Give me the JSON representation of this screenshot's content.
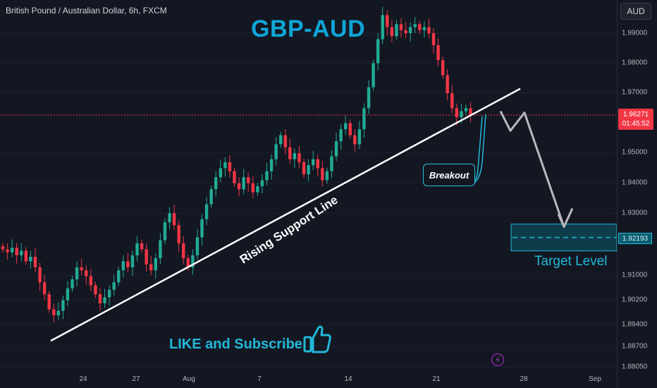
{
  "header": {
    "symbol_title": "British Pound / Australian Dollar, 6h, FXCM",
    "currency_button": "AUD"
  },
  "annotations": {
    "main_title": "GBP-AUD",
    "support_line_label": "Rising Support Line",
    "breakout_label": "Breakout",
    "target_label": "Target Level",
    "cta_text": "LIKE and Subscribe"
  },
  "icons": {
    "thumbs_up": "thumbs-up-icon",
    "alert": "lightning-icon"
  },
  "colors": {
    "background": "#131722",
    "bull": "#22ab94",
    "bear": "#f23645",
    "accent": "#22b8d8",
    "support_line": "#ffffff",
    "projection": "#b7b9bd"
  },
  "price_axis": {
    "current_price": "1.96271",
    "countdown": "01:45:52",
    "target_price": "1.92193",
    "ticks": [
      "1.99000",
      "1.98000",
      "1.97000",
      "1.95000",
      "1.94000",
      "1.93000",
      "1.91000",
      "1.90200",
      "1.89400",
      "1.88700",
      "1.88050"
    ]
  },
  "time_axis": {
    "ticks": [
      "24",
      "27",
      "Aug",
      "7",
      "14",
      "21",
      "28",
      "Sep"
    ]
  },
  "chart_data": {
    "type": "candlestick",
    "symbol": "British Pound / Australian Dollar",
    "interval": "6h",
    "ylim": [
      1.878,
      2.0
    ],
    "current_price": 1.96271,
    "target_price": 1.92193,
    "support_line": {
      "from": [
        "Jul 22",
        1.8875
      ],
      "to": [
        "Aug 25",
        1.9715
      ]
    },
    "projection": [
      1.964,
      1.9575,
      1.9635,
      1.9255
    ],
    "closes": [
      1.918,
      1.917,
      1.9185,
      1.916,
      1.9175,
      1.914,
      1.9155,
      1.912,
      1.907,
      1.903,
      1.898,
      1.896,
      1.8975,
      1.901,
      1.905,
      1.908,
      1.912,
      1.911,
      1.909,
      1.906,
      1.903,
      1.9,
      1.902,
      1.9045,
      1.907,
      1.911,
      1.914,
      1.912,
      1.916,
      1.92,
      1.918,
      1.913,
      1.911,
      1.915,
      1.921,
      1.927,
      1.93,
      1.926,
      1.92,
      1.915,
      1.912,
      1.916,
      1.922,
      1.928,
      1.933,
      1.938,
      1.942,
      1.945,
      1.947,
      1.944,
      1.94,
      1.938,
      1.942,
      1.94,
      1.937,
      1.939,
      1.941,
      1.944,
      1.948,
      1.953,
      1.956,
      1.952,
      1.948,
      1.95,
      1.947,
      1.943,
      1.946,
      1.948,
      1.945,
      1.941,
      1.944,
      1.949,
      1.954,
      1.958,
      1.96,
      1.956,
      1.953,
      1.958,
      1.965,
      1.972,
      1.98,
      1.988,
      1.996,
      1.992,
      1.989,
      1.993,
      1.991,
      1.99,
      1.992,
      1.993,
      1.991,
      1.992,
      1.99,
      1.986,
      1.981,
      1.976,
      1.97,
      1.965,
      1.962,
      1.964,
      1.965,
      1.9627
    ]
  }
}
